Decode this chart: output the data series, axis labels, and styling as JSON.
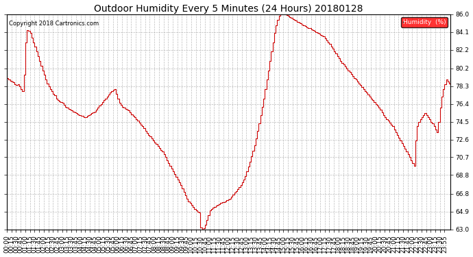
{
  "title": "Outdoor Humidity Every 5 Minutes (24 Hours) 20180128",
  "copyright": "Copyright 2018 Cartronics.com",
  "legend_label": "Humidity  (%)",
  "background_color": "#ffffff",
  "plot_bg_color": "#ffffff",
  "line_color": "#cc0000",
  "line_width": 0.8,
  "ylim": [
    63.0,
    86.0
  ],
  "yticks": [
    63.0,
    64.9,
    66.8,
    68.8,
    70.7,
    72.6,
    74.5,
    76.4,
    78.3,
    80.2,
    82.2,
    84.1,
    86.0
  ],
  "grid_color": "#aaaaaa",
  "title_fontsize": 10,
  "tick_fontsize": 6.5,
  "humidity_values": [
    79.2,
    79.0,
    78.9,
    78.8,
    78.7,
    78.5,
    78.4,
    78.5,
    78.3,
    78.0,
    77.8,
    79.5,
    83.0,
    84.3,
    84.2,
    84.0,
    83.5,
    83.0,
    82.5,
    82.0,
    81.5,
    81.0,
    80.5,
    80.0,
    79.5,
    79.0,
    78.6,
    78.3,
    78.0,
    77.8,
    77.5,
    77.3,
    77.0,
    76.8,
    76.7,
    76.6,
    76.5,
    76.3,
    76.1,
    76.0,
    75.9,
    75.8,
    75.7,
    75.6,
    75.5,
    75.4,
    75.3,
    75.2,
    75.1,
    75.1,
    75.0,
    75.0,
    75.1,
    75.2,
    75.3,
    75.4,
    75.5,
    75.6,
    75.8,
    76.0,
    76.2,
    76.4,
    76.6,
    76.8,
    77.0,
    77.2,
    77.4,
    77.6,
    77.8,
    77.9,
    78.0,
    77.5,
    77.0,
    76.5,
    76.3,
    76.1,
    76.0,
    75.9,
    75.8,
    75.7,
    75.5,
    75.3,
    75.1,
    75.0,
    74.8,
    74.6,
    74.4,
    74.2,
    74.0,
    73.8,
    73.5,
    73.3,
    73.1,
    72.9,
    72.7,
    72.5,
    72.3,
    72.1,
    71.9,
    71.7,
    71.5,
    71.3,
    71.0,
    70.7,
    70.4,
    70.1,
    69.8,
    69.5,
    69.2,
    68.9,
    68.6,
    68.3,
    68.0,
    67.7,
    67.4,
    67.0,
    66.6,
    66.3,
    66.0,
    65.8,
    65.6,
    65.4,
    65.2,
    65.0,
    64.9,
    64.8,
    63.2,
    63.0,
    63.1,
    63.5,
    64.0,
    64.5,
    65.0,
    65.2,
    65.3,
    65.4,
    65.5,
    65.6,
    65.7,
    65.8,
    65.9,
    65.9,
    66.0,
    66.1,
    66.2,
    66.3,
    66.5,
    66.7,
    66.9,
    67.1,
    67.3,
    67.5,
    67.7,
    68.0,
    68.3,
    68.7,
    69.2,
    69.7,
    70.2,
    70.8,
    71.4,
    72.0,
    72.7,
    73.5,
    74.3,
    75.2,
    76.1,
    77.0,
    78.0,
    79.0,
    80.0,
    81.0,
    82.0,
    83.0,
    84.0,
    84.8,
    85.4,
    85.8,
    86.0,
    86.1,
    86.1,
    86.0,
    85.9,
    85.8,
    85.7,
    85.6,
    85.5,
    85.4,
    85.3,
    85.2,
    85.1,
    85.0,
    84.9,
    84.8,
    84.7,
    84.6,
    84.5,
    84.5,
    84.4,
    84.3,
    84.2,
    84.1,
    84.0,
    83.9,
    83.8,
    83.7,
    83.6,
    83.4,
    83.2,
    83.0,
    82.8,
    82.5,
    82.3,
    82.0,
    81.8,
    81.5,
    81.3,
    81.0,
    80.8,
    80.6,
    80.4,
    80.2,
    80.0,
    79.8,
    79.6,
    79.4,
    79.2,
    79.0,
    78.8,
    78.6,
    78.4,
    78.2,
    78.0,
    77.8,
    77.6,
    77.4,
    77.2,
    77.0,
    76.8,
    76.6,
    76.4,
    76.2,
    76.0,
    75.8,
    75.5,
    75.2,
    75.0,
    74.8,
    74.6,
    74.4,
    74.2,
    74.0,
    73.7,
    73.4,
    73.1,
    72.8,
    72.5,
    72.2,
    71.9,
    71.6,
    71.3,
    71.0,
    70.7,
    70.4,
    70.1,
    69.8,
    72.5,
    74.0,
    74.5,
    74.8,
    75.0,
    75.2,
    75.4,
    75.2,
    75.0,
    74.8,
    74.5,
    74.3,
    74.0,
    73.7,
    73.4,
    74.5,
    76.0,
    77.2,
    78.0,
    78.5,
    79.0,
    78.8,
    78.6,
    79.2
  ],
  "time_labels": [
    "00:00",
    "00:15",
    "00:30",
    "00:45",
    "01:00",
    "01:15",
    "01:30",
    "01:45",
    "02:00",
    "02:15",
    "02:30",
    "02:45",
    "03:00",
    "03:15",
    "03:30",
    "03:45",
    "04:00",
    "04:15",
    "04:30",
    "04:45",
    "05:00",
    "05:15",
    "05:30",
    "05:45",
    "06:00",
    "06:15",
    "06:30",
    "06:45",
    "07:00",
    "07:15",
    "07:30",
    "07:45",
    "08:00",
    "08:15",
    "08:30",
    "08:45",
    "09:00",
    "09:15",
    "09:30",
    "09:45",
    "10:00",
    "10:15",
    "10:30",
    "10:45",
    "11:00",
    "11:15",
    "11:30",
    "11:45",
    "12:00",
    "12:15",
    "12:30",
    "12:45",
    "13:00",
    "13:15",
    "13:30",
    "13:45",
    "14:00",
    "14:15",
    "14:30",
    "14:45",
    "15:00",
    "15:15",
    "15:30",
    "15:45",
    "16:00",
    "16:15",
    "16:30",
    "16:45",
    "17:00",
    "17:15",
    "17:30",
    "17:45",
    "18:00",
    "18:15",
    "18:30",
    "18:45",
    "19:00",
    "19:15",
    "19:30",
    "19:45",
    "20:00",
    "20:15",
    "20:30",
    "20:45",
    "21:00",
    "21:15",
    "21:30",
    "21:45",
    "22:00",
    "22:15",
    "22:30",
    "22:45",
    "23:00",
    "23:15",
    "23:30",
    "23:55"
  ]
}
